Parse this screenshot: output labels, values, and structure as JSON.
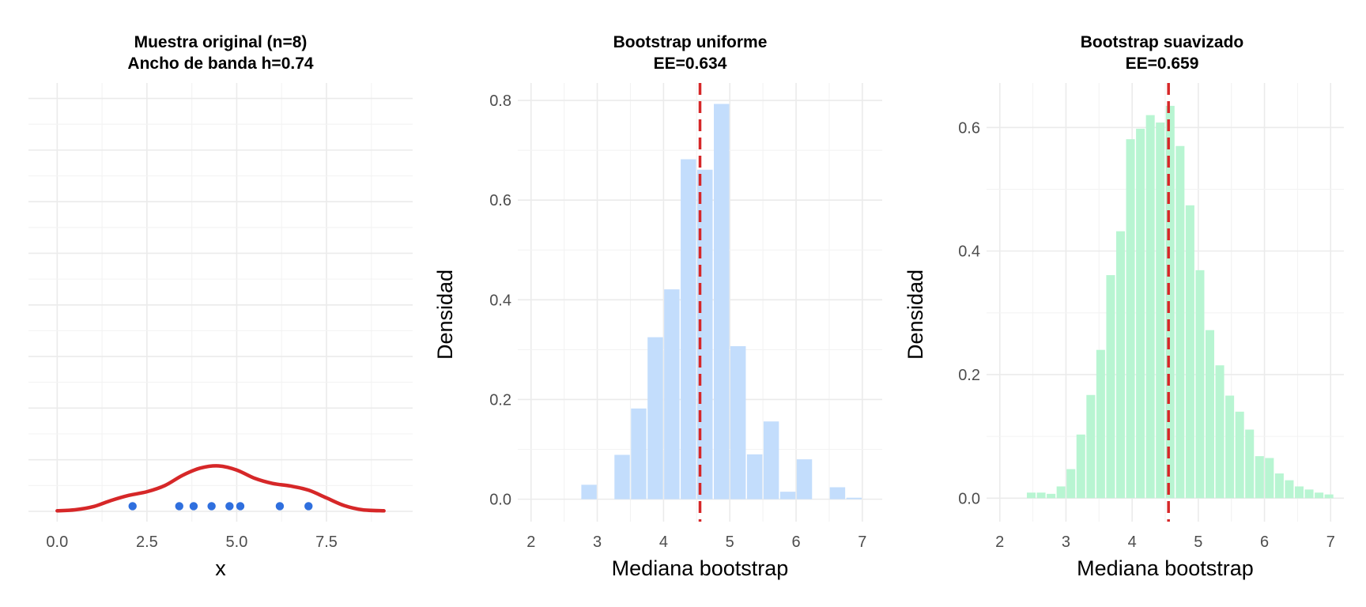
{
  "chart_data": [
    {
      "type": "scatter",
      "title_lines": [
        "Muestra original (n=8)",
        "Ancho de banda h=0.74"
      ],
      "xlabel": "x",
      "ylabel": "",
      "xlim": [
        -0.8,
        9.9
      ],
      "ylim": [
        -0.02,
        0.83
      ],
      "x_ticks": [
        0,
        2.5,
        5,
        7.5
      ],
      "x_tick_labels": [
        "0.0",
        "2.5",
        "5.0",
        "7.5"
      ],
      "y_ticks": [],
      "points": [
        2.1,
        3.4,
        3.8,
        4.3,
        4.8,
        5.1,
        6.2,
        7.0
      ],
      "point_y": 0.01,
      "point_color": "#2f6fde",
      "kde": {
        "color": "#d62728",
        "x": [
          0.0,
          0.5,
          1.0,
          1.5,
          2.0,
          2.5,
          3.0,
          3.5,
          4.0,
          4.5,
          5.0,
          5.5,
          6.0,
          6.5,
          7.0,
          7.5,
          8.0,
          8.5,
          9.1
        ],
        "y": [
          0.001,
          0.003,
          0.009,
          0.021,
          0.031,
          0.038,
          0.05,
          0.07,
          0.084,
          0.088,
          0.08,
          0.064,
          0.054,
          0.049,
          0.041,
          0.026,
          0.011,
          0.003,
          0.001
        ]
      },
      "grid": true
    },
    {
      "type": "bar",
      "title_lines": [
        "Bootstrap uniforme",
        "EE=0.634"
      ],
      "xlabel": "Mediana bootstrap",
      "ylabel": "Densidad",
      "xlim": [
        1.8,
        7.3
      ],
      "ylim": [
        -0.045,
        0.835
      ],
      "x_ticks": [
        2,
        3,
        4,
        5,
        6,
        7
      ],
      "x_tick_labels": [
        "2",
        "3",
        "4",
        "5",
        "6",
        "7"
      ],
      "y_ticks": [
        0,
        0.2,
        0.4,
        0.6,
        0.8
      ],
      "y_tick_labels": [
        "0.0",
        "0.2",
        "0.4",
        "0.6",
        "0.8"
      ],
      "bin_width": 0.25,
      "bar_color": "#c3ddfc",
      "bins": [
        {
          "x0": 2.5,
          "x1": 2.75,
          "value": 0.0
        },
        {
          "x0": 2.75,
          "x1": 3.0,
          "value": 0.029
        },
        {
          "x0": 3.0,
          "x1": 3.25,
          "value": 0.0
        },
        {
          "x0": 3.25,
          "x1": 3.5,
          "value": 0.089
        },
        {
          "x0": 3.5,
          "x1": 3.75,
          "value": 0.182
        },
        {
          "x0": 3.75,
          "x1": 4.0,
          "value": 0.325
        },
        {
          "x0": 4.0,
          "x1": 4.25,
          "value": 0.421
        },
        {
          "x0": 4.25,
          "x1": 4.5,
          "value": 0.682
        },
        {
          "x0": 4.5,
          "x1": 4.75,
          "value": 0.661
        },
        {
          "x0": 4.75,
          "x1": 5.0,
          "value": 0.793
        },
        {
          "x0": 5.0,
          "x1": 5.25,
          "value": 0.307
        },
        {
          "x0": 5.25,
          "x1": 5.5,
          "value": 0.09
        },
        {
          "x0": 5.5,
          "x1": 5.75,
          "value": 0.156
        },
        {
          "x0": 5.75,
          "x1": 6.0,
          "value": 0.015
        },
        {
          "x0": 6.0,
          "x1": 6.25,
          "value": 0.08
        },
        {
          "x0": 6.25,
          "x1": 6.5,
          "value": 0.0
        },
        {
          "x0": 6.5,
          "x1": 6.75,
          "value": 0.024
        },
        {
          "x0": 6.75,
          "x1": 7.0,
          "value": 0.003
        }
      ],
      "vline": {
        "x": 4.55,
        "color": "#d62728"
      },
      "grid": true
    },
    {
      "type": "bar",
      "title_lines": [
        "Bootstrap suavizado",
        "EE=0.659"
      ],
      "xlabel": "Mediana bootstrap",
      "ylabel": "Densidad",
      "xlim": [
        1.8,
        7.2
      ],
      "ylim": [
        -0.038,
        0.672
      ],
      "x_ticks": [
        2,
        3,
        4,
        5,
        6,
        7
      ],
      "x_tick_labels": [
        "2",
        "3",
        "4",
        "5",
        "6",
        "7"
      ],
      "y_ticks": [
        0,
        0.2,
        0.4,
        0.6
      ],
      "y_tick_labels": [
        "0.0",
        "0.2",
        "0.4",
        "0.6"
      ],
      "bin_width": 0.15,
      "bar_color": "#b8f5d2",
      "bins": [
        {
          "x0": 2.25,
          "x1": 2.4,
          "value": 0.0
        },
        {
          "x0": 2.4,
          "x1": 2.55,
          "value": 0.009
        },
        {
          "x0": 2.55,
          "x1": 2.7,
          "value": 0.009
        },
        {
          "x0": 2.7,
          "x1": 2.85,
          "value": 0.007
        },
        {
          "x0": 2.85,
          "x1": 3.0,
          "value": 0.019
        },
        {
          "x0": 3.0,
          "x1": 3.15,
          "value": 0.047
        },
        {
          "x0": 3.15,
          "x1": 3.3,
          "value": 0.103
        },
        {
          "x0": 3.3,
          "x1": 3.45,
          "value": 0.167
        },
        {
          "x0": 3.45,
          "x1": 3.6,
          "value": 0.24
        },
        {
          "x0": 3.6,
          "x1": 3.75,
          "value": 0.361
        },
        {
          "x0": 3.75,
          "x1": 3.9,
          "value": 0.432
        },
        {
          "x0": 3.9,
          "x1": 4.05,
          "value": 0.581
        },
        {
          "x0": 4.05,
          "x1": 4.2,
          "value": 0.598
        },
        {
          "x0": 4.2,
          "x1": 4.35,
          "value": 0.62
        },
        {
          "x0": 4.35,
          "x1": 4.5,
          "value": 0.608
        },
        {
          "x0": 4.5,
          "x1": 4.65,
          "value": 0.635
        },
        {
          "x0": 4.65,
          "x1": 4.8,
          "value": 0.57
        },
        {
          "x0": 4.8,
          "x1": 4.95,
          "value": 0.474
        },
        {
          "x0": 4.95,
          "x1": 5.1,
          "value": 0.369
        },
        {
          "x0": 5.1,
          "x1": 5.25,
          "value": 0.272
        },
        {
          "x0": 5.25,
          "x1": 5.4,
          "value": 0.215
        },
        {
          "x0": 5.4,
          "x1": 5.55,
          "value": 0.166
        },
        {
          "x0": 5.55,
          "x1": 5.7,
          "value": 0.14
        },
        {
          "x0": 5.7,
          "x1": 5.85,
          "value": 0.111
        },
        {
          "x0": 5.85,
          "x1": 6.0,
          "value": 0.068
        },
        {
          "x0": 6.0,
          "x1": 6.15,
          "value": 0.065
        },
        {
          "x0": 6.15,
          "x1": 6.3,
          "value": 0.04
        },
        {
          "x0": 6.3,
          "x1": 6.45,
          "value": 0.029
        },
        {
          "x0": 6.45,
          "x1": 6.6,
          "value": 0.019
        },
        {
          "x0": 6.6,
          "x1": 6.75,
          "value": 0.014
        },
        {
          "x0": 6.75,
          "x1": 6.9,
          "value": 0.009
        },
        {
          "x0": 6.9,
          "x1": 7.05,
          "value": 0.006
        }
      ],
      "vline": {
        "x": 4.55,
        "color": "#d62728"
      },
      "grid": true
    }
  ]
}
